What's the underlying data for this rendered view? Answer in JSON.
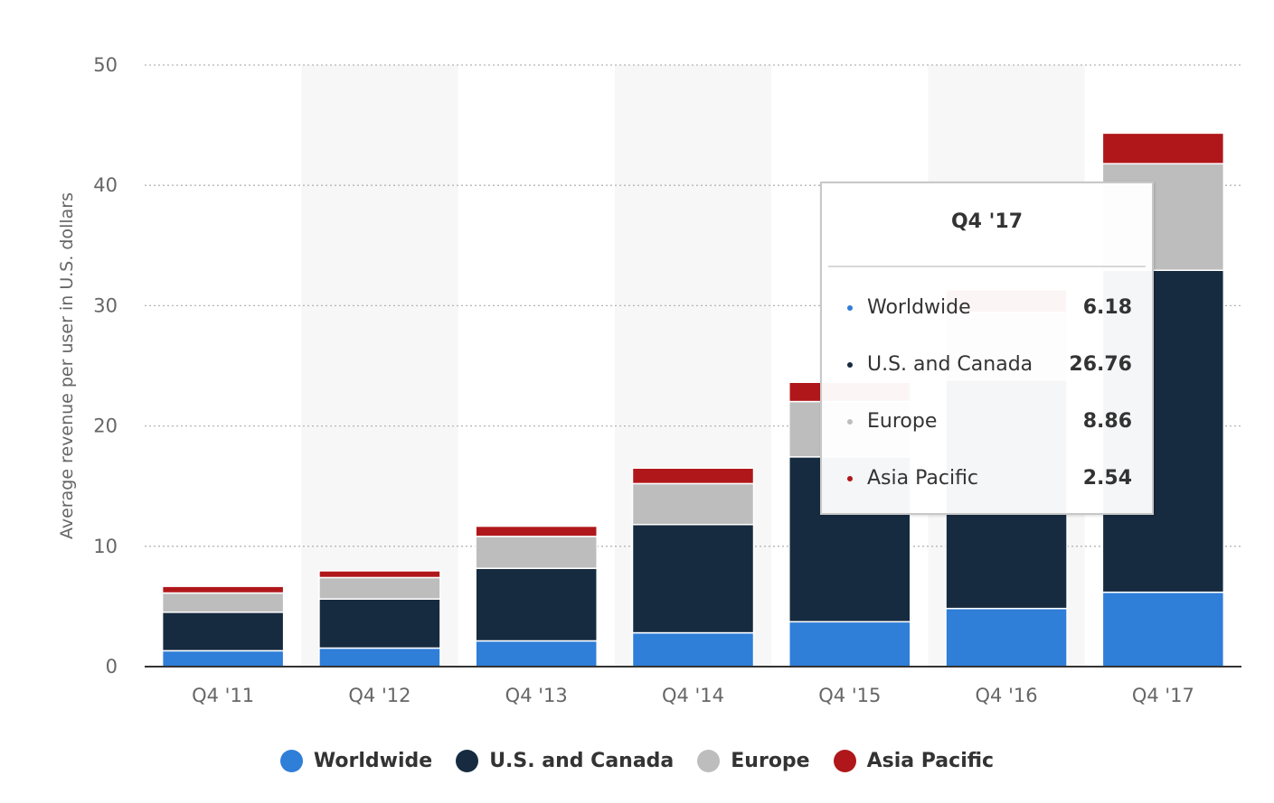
{
  "chart_data": {
    "type": "bar",
    "stacked": true,
    "categories": [
      "Q4 '11",
      "Q4 '12",
      "Q4 '13",
      "Q4 '14",
      "Q4 '15",
      "Q4 '16",
      "Q4 '17"
    ],
    "series": [
      {
        "name": "Worldwide",
        "color": "#2f7ed8",
        "values": [
          1.32,
          1.54,
          2.14,
          2.81,
          3.73,
          4.83,
          6.18
        ]
      },
      {
        "name": "U.S. and Canada",
        "color": "#162b40",
        "values": [
          3.2,
          4.08,
          6.03,
          9.0,
          13.7,
          19.0,
          26.76
        ]
      },
      {
        "name": "Europe",
        "color": "#bdbdbd",
        "values": [
          1.6,
          1.78,
          2.65,
          3.4,
          4.6,
          5.6,
          8.86
        ]
      },
      {
        "name": "Asia Pacific",
        "color": "#b0171a",
        "values": [
          0.55,
          0.56,
          0.85,
          1.29,
          1.6,
          1.9,
          2.54
        ]
      }
    ],
    "ylim": [
      0,
      50
    ],
    "yticks": [
      0,
      10,
      20,
      30,
      40,
      50
    ],
    "ylabel": "Average revenue per user in U.S. dollars",
    "xlabel": "",
    "grid": true,
    "legend_position": "bottom-center"
  },
  "tooltip": {
    "title": "Q4 '17",
    "rows": [
      {
        "name": "Worldwide",
        "value": "6.18",
        "color": "#2f7ed8"
      },
      {
        "name": "U.S. and Canada",
        "value": "26.76",
        "color": "#162b40"
      },
      {
        "name": "Europe",
        "value": "8.86",
        "color": "#bdbdbd"
      },
      {
        "name": "Asia Pacific",
        "value": "2.54",
        "color": "#b0171a"
      }
    ]
  },
  "legend": [
    {
      "label": "Worldwide",
      "color": "#2f7ed8"
    },
    {
      "label": "U.S. and Canada",
      "color": "#162b40"
    },
    {
      "label": "Europe",
      "color": "#bdbdbd"
    },
    {
      "label": "Asia Pacific",
      "color": "#b0171a"
    }
  ]
}
